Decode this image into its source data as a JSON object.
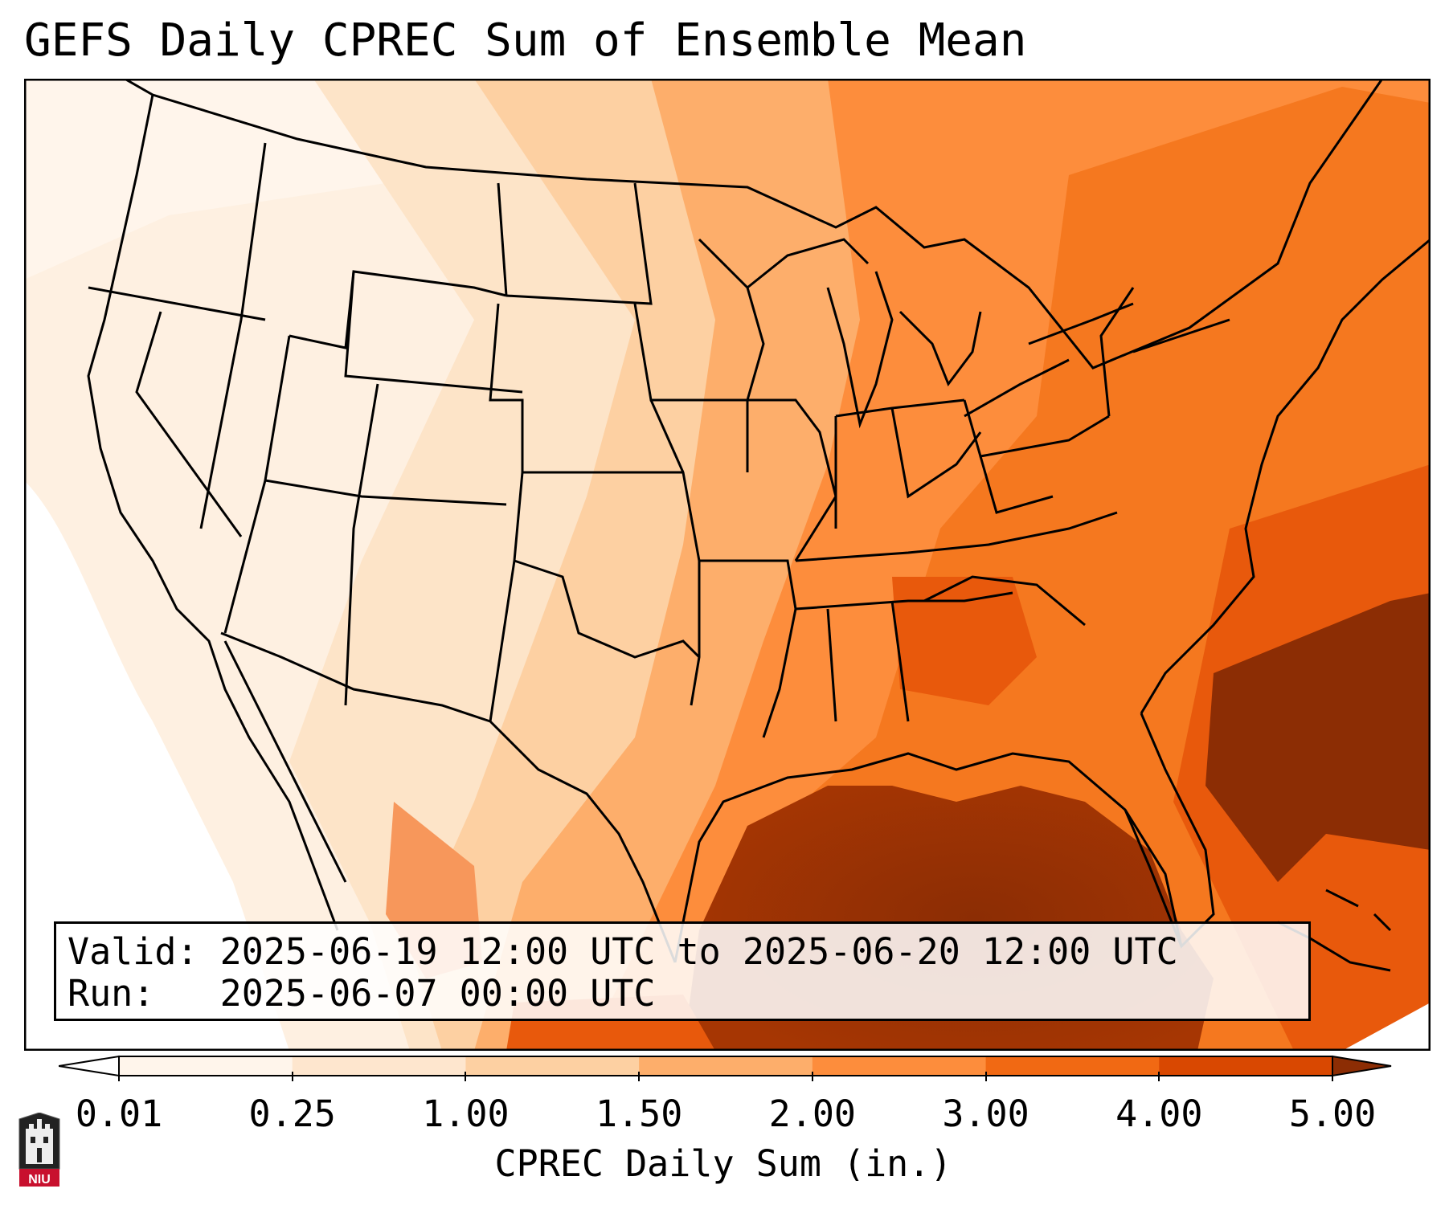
{
  "title": "GEFS Daily CPREC Sum of Ensemble Mean",
  "info": {
    "valid": "Valid: 2025-06-19 12:00 UTC to 2025-06-20 12:00 UTC",
    "run": "Run:   2025-06-07 00:00 UTC"
  },
  "colorbar": {
    "ticks": [
      "0.01",
      "0.25",
      "1.00",
      "1.50",
      "2.00",
      "3.00",
      "4.00",
      "5.00"
    ],
    "label": "CPREC Daily Sum (in.)",
    "colors": [
      "#fff5eb",
      "#fee6ce",
      "#fdd0a2",
      "#fdae6b",
      "#fd8d3c",
      "#f16913",
      "#d94801",
      "#8c2d04"
    ]
  },
  "logo": {
    "text": "NIU",
    "color": "#c8102e"
  }
}
